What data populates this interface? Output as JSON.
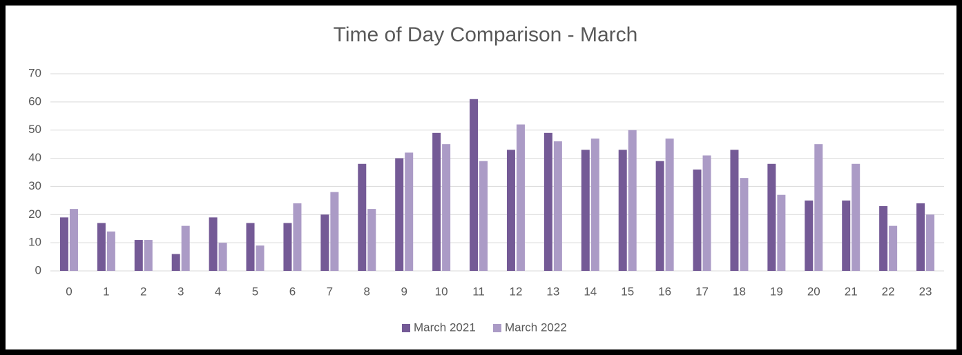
{
  "chart_data": {
    "type": "bar",
    "title": "Time of Day Comparison - March",
    "categories": [
      "0",
      "1",
      "2",
      "3",
      "4",
      "5",
      "6",
      "7",
      "8",
      "9",
      "10",
      "11",
      "12",
      "13",
      "14",
      "15",
      "16",
      "17",
      "18",
      "19",
      "20",
      "21",
      "22",
      "23"
    ],
    "series": [
      {
        "name": "March 2021",
        "color": "#745a96",
        "values": [
          19,
          17,
          11,
          6,
          19,
          17,
          17,
          20,
          38,
          40,
          49,
          61,
          43,
          49,
          43,
          43,
          39,
          36,
          43,
          38,
          25,
          25,
          23,
          24
        ]
      },
      {
        "name": "March 2022",
        "color": "#ab9bc6",
        "values": [
          22,
          14,
          11,
          16,
          10,
          9,
          24,
          28,
          22,
          42,
          45,
          39,
          52,
          46,
          47,
          50,
          47,
          41,
          33,
          27,
          45,
          38,
          16,
          20
        ]
      }
    ],
    "ylim": [
      0,
      70
    ],
    "yticks": [
      0,
      10,
      20,
      30,
      40,
      50,
      60,
      70
    ],
    "grid": true,
    "legend": "bottom"
  }
}
